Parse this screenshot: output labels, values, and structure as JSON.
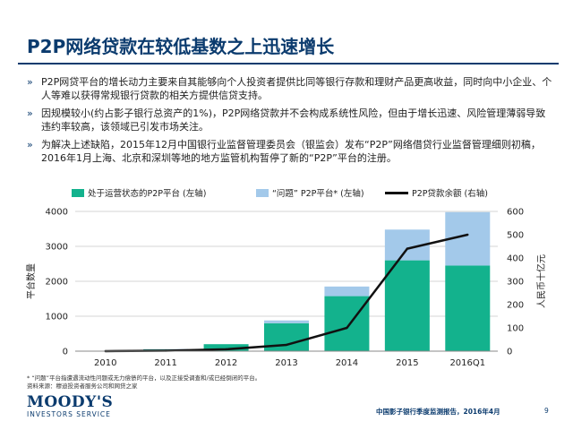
{
  "slide": {
    "title": "P2P网络贷款在较低基数之上迅速增长",
    "bullet_marker": "»",
    "bullets": [
      "P2P网贷平台的增长动力主要来自其能够向个人投资者提供比同等银行存款和理财产品更高收益，同时向中小企业、个人等难以获得常规银行贷款的相关方提供信贷支持。",
      "因规模较小(约占影子银行总资产的1%)，P2P网络贷款并不会构成系统性风险，但由于增长迅速、风险管理薄弱导致违约率较高，该领域已引发市场关注。",
      "为解决上述缺陷，2015年12月中国银行业监督管理委员会（银监会）发布“P2P”网络借贷行业监督管理细则初稿，2016年1月上海、北京和深圳等地的地方监管机构暂停了新的“P2P”平台的注册。"
    ],
    "footnote_lines": [
      "* “问题”平台指遭遇流动性问题或无力偿债的平台，以及正接受调查和/或已经倒闭的平台。",
      "资料来源：穆迪投资者服务公司和网贷之家"
    ],
    "brand_line1": "MOODY'S",
    "brand_line2": "INVESTORS SERVICE",
    "report_name": "中国影子银行季度监测报告，2016年4月",
    "page_number": "9"
  },
  "chart_data": {
    "type": "bar",
    "stacked": true,
    "categories": [
      "2010",
      "2011",
      "2012",
      "2013",
      "2014",
      "2015",
      "2016Q1"
    ],
    "series": [
      {
        "name": "处于运营状态的P2P平台 (左轴)",
        "kind": "bar",
        "axis": "left",
        "color": "#13b28d",
        "values": [
          10,
          50,
          200,
          800,
          1575,
          2600,
          2450
        ]
      },
      {
        "name": "“问题” P2P平台* (左轴)",
        "kind": "bar",
        "axis": "left",
        "color": "#a3c9ea",
        "values": [
          0,
          10,
          0,
          80,
          275,
          880,
          1530
        ]
      },
      {
        "name": "P2P贷款余额 (右轴)",
        "kind": "line",
        "axis": "right",
        "color": "#111111",
        "values": [
          0,
          2,
          8,
          27,
          100,
          440,
          500
        ]
      }
    ],
    "ylabel": "平台数量",
    "y2label": "人民币十亿元",
    "ylim": [
      0,
      4000
    ],
    "yticks": [
      "0",
      "1000",
      "2000",
      "3000",
      "4000"
    ],
    "y2lim": [
      0,
      600
    ],
    "y2ticks": [
      "0",
      "100",
      "200",
      "300",
      "400",
      "500",
      "600"
    ],
    "grid": true,
    "legend_position": "top"
  }
}
